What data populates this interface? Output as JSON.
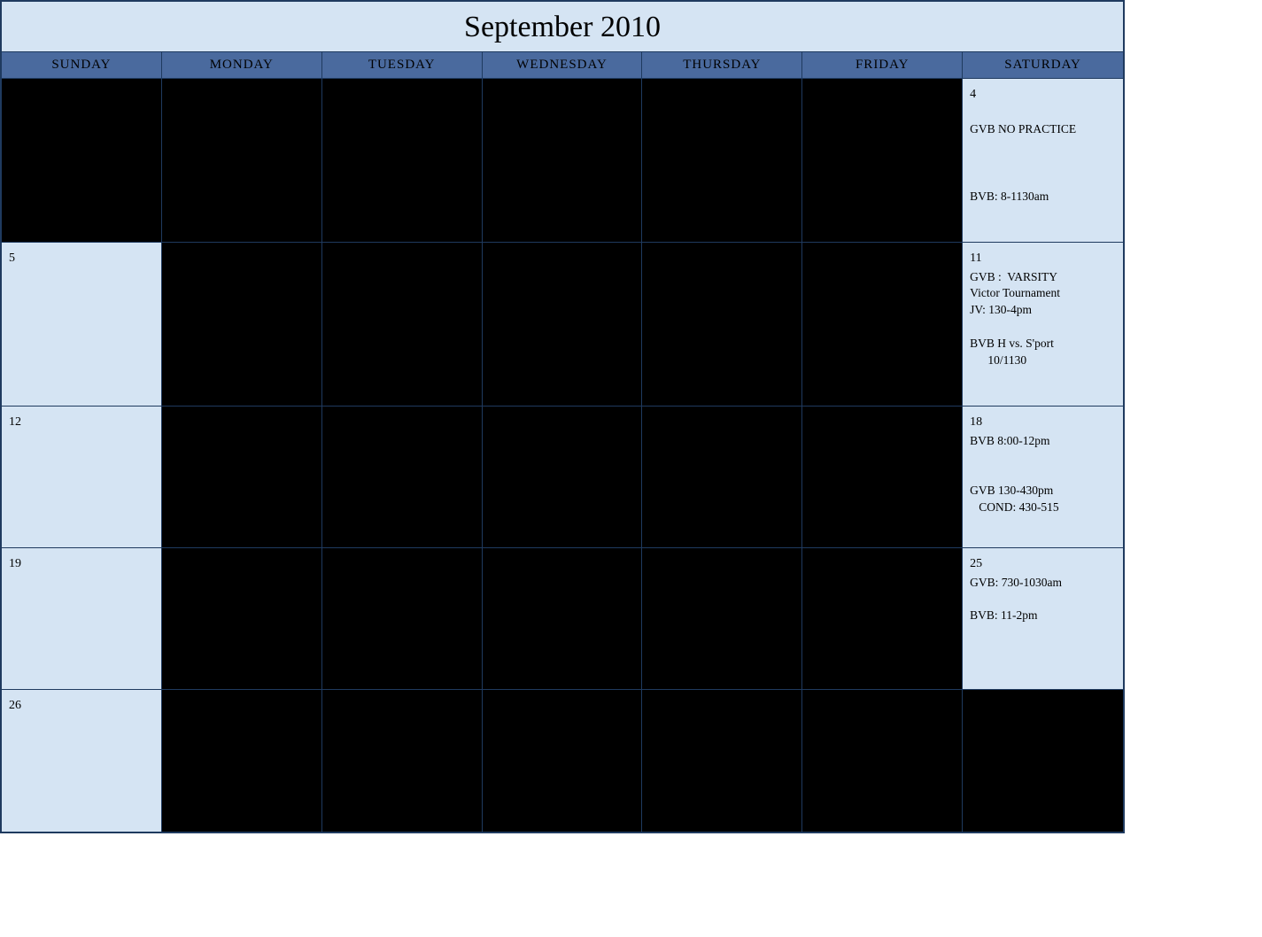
{
  "calendar": {
    "title": "September 2010",
    "days_of_week": [
      "SUNDAY",
      "MONDAY",
      "TUESDAY",
      "WEDNESDAY",
      "THURSDAY",
      "FRIDAY",
      "SATURDAY"
    ],
    "colors": {
      "border": "#1f3a5f",
      "title_bg": "#d5e4f3",
      "header_bg": "#4a6a9e",
      "cell_bg": "#d5e4f3",
      "black_cell": "#000000",
      "text": "#000000"
    },
    "cells": [
      {
        "black": true
      },
      {
        "black": true
      },
      {
        "black": true
      },
      {
        "black": true
      },
      {
        "black": true
      },
      {
        "black": true
      },
      {
        "day": "4",
        "lines": [
          "",
          "GVB NO PRACTICE",
          "",
          "",
          "",
          "BVB: 8-1130am"
        ]
      },
      {
        "day": "5"
      },
      {
        "black": true
      },
      {
        "black": true
      },
      {
        "black": true
      },
      {
        "black": true
      },
      {
        "black": true
      },
      {
        "day": "11",
        "lines": [
          "GVB :  VARSITY",
          "Victor Tournament",
          "JV: 130-4pm",
          "",
          "BVB H vs. S'port",
          "      10/1130"
        ]
      },
      {
        "day": "12",
        "short": true
      },
      {
        "black": true,
        "short": true
      },
      {
        "black": true,
        "short": true
      },
      {
        "black": true,
        "short": true
      },
      {
        "black": true,
        "short": true
      },
      {
        "black": true,
        "short": true
      },
      {
        "day": "18",
        "short": true,
        "lines": [
          "BVB 8:00-12pm",
          "",
          "",
          "GVB 130-430pm",
          "   COND: 430-515"
        ]
      },
      {
        "day": "19",
        "short": true
      },
      {
        "black": true,
        "short": true
      },
      {
        "black": true,
        "short": true
      },
      {
        "black": true,
        "short": true
      },
      {
        "black": true,
        "short": true
      },
      {
        "black": true,
        "short": true
      },
      {
        "day": "25",
        "short": true,
        "lines": [
          "GVB: 730-1030am",
          "",
          "BVB: 11-2pm"
        ]
      },
      {
        "day": "26",
        "last": true
      },
      {
        "black": true,
        "last": true
      },
      {
        "black": true,
        "last": true
      },
      {
        "black": true,
        "last": true
      },
      {
        "black": true,
        "last": true
      },
      {
        "black": true,
        "last": true
      },
      {
        "black": true,
        "last": true
      }
    ]
  }
}
